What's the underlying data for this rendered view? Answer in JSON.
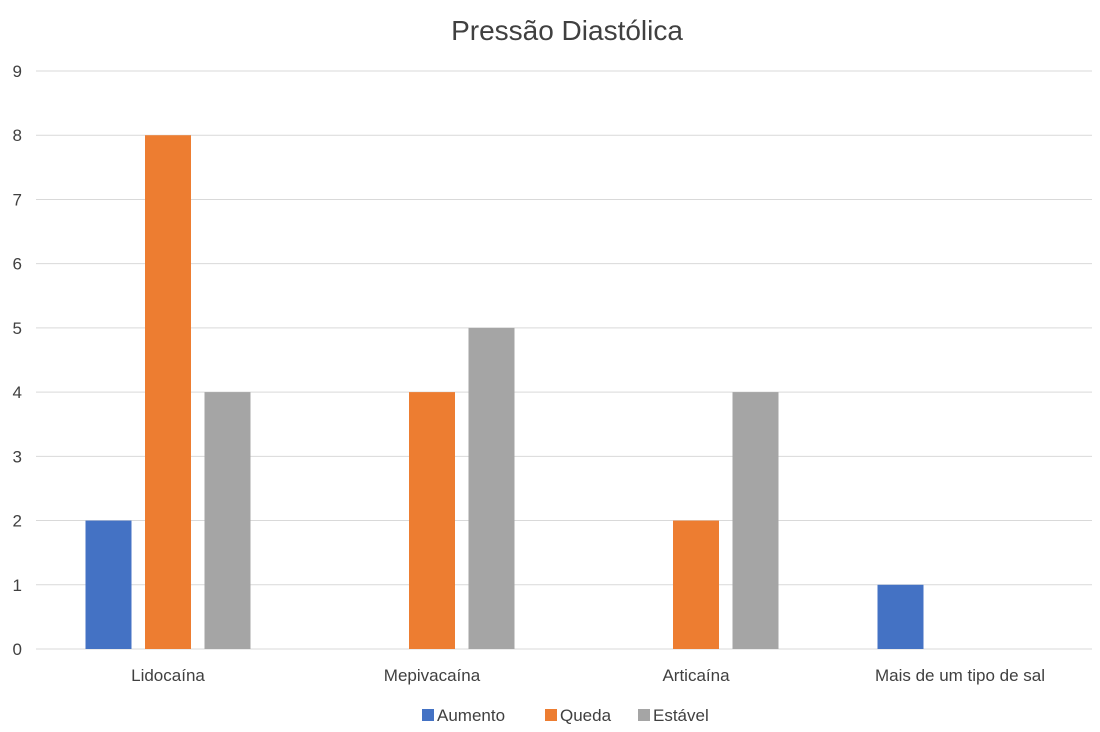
{
  "chart_data": {
    "type": "bar",
    "title": "Pressão Diastólica",
    "xlabel": "",
    "ylabel": "",
    "categories": [
      "Lidocaína",
      "Mepivacaína",
      "Articaína",
      "Mais de um tipo de sal"
    ],
    "series": [
      {
        "name": "Aumento",
        "color": "#4472c4",
        "values": [
          2,
          0,
          0,
          1
        ]
      },
      {
        "name": "Queda",
        "color": "#ed7d31",
        "values": [
          8,
          4,
          2,
          0
        ]
      },
      {
        "name": "Estável",
        "color": "#a5a5a5",
        "values": [
          4,
          5,
          4,
          0
        ]
      }
    ],
    "ylim": [
      0,
      9
    ],
    "yticks": [
      "0",
      "1",
      "2",
      "3",
      "4",
      "5",
      "6",
      "7",
      "8",
      "9"
    ],
    "grid": true,
    "legend_position": "bottom"
  }
}
